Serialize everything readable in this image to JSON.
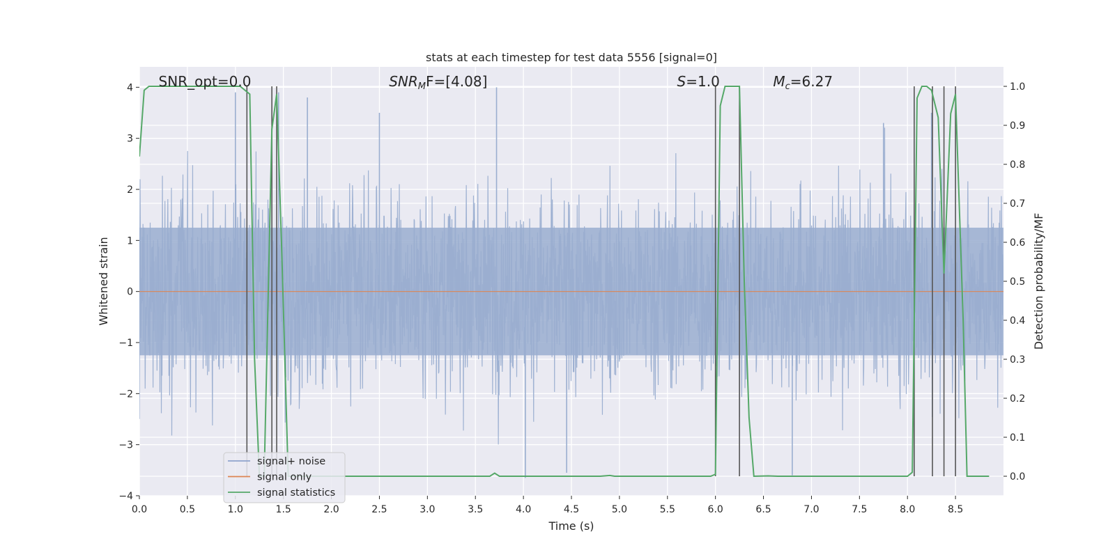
{
  "chart_data": {
    "type": "line",
    "title": "stats at each timestep for test data 5556 [signal=0]",
    "xlabel": "Time (s)",
    "ylabel": "Whitened strain",
    "ylabel_right": "Detection probability/MF",
    "xlim": [
      0.0,
      9.0
    ],
    "ylim": [
      -4.0,
      4.4
    ],
    "ylim_right": [
      -0.05,
      1.05
    ],
    "grid": true,
    "x_ticks": [
      "0.0",
      "0.5",
      "1.0",
      "1.5",
      "2.0",
      "2.5",
      "3.0",
      "3.5",
      "4.0",
      "4.5",
      "5.0",
      "5.5",
      "6.0",
      "6.5",
      "7.0",
      "7.5",
      "8.0",
      "8.5"
    ],
    "y_ticks": [
      "4",
      "3",
      "2",
      "1",
      "0",
      "−1",
      "−2",
      "−3",
      "−4"
    ],
    "y_right_ticks": [
      "1.0",
      "0.9",
      "0.8",
      "0.7",
      "0.6",
      "0.5",
      "0.4",
      "0.3",
      "0.2",
      "0.1",
      "0.0"
    ],
    "annotations": [
      {
        "prefix": "SNR_opt=0.0",
        "sub": "",
        "suffix": "",
        "x": 0.2
      },
      {
        "prefix": "SNR",
        "sub": "M",
        "suffix": "F=[4.08]",
        "x": 2.6
      },
      {
        "prefix": "S",
        "sub": "",
        "suffix": "=1.0",
        "x": 5.6
      },
      {
        "prefix": "M",
        "sub": "c",
        "suffix": "=6.27",
        "x": 6.6
      }
    ],
    "legend": {
      "placement": "lower-left",
      "entries": [
        {
          "label": "signal+ noise",
          "color": "#8fa3cc"
        },
        {
          "label": "signal only",
          "color": "#dd8452"
        },
        {
          "label": "signal statistics",
          "color": "#55a868"
        }
      ]
    },
    "series": [
      {
        "name": "signal+ noise",
        "axis": "left",
        "color": "#9aaed0",
        "x_range": [
          0.0,
          9.0
        ],
        "noise_amplitude_percentiles": {
          "median": 1.7,
          "max_positive": 4.0,
          "max_negative": -3.65
        },
        "notable_peaks": [
          [
            1.0,
            3.9
          ],
          [
            1.45,
            3.9
          ],
          [
            1.75,
            3.8
          ],
          [
            2.5,
            3.5
          ],
          [
            3.72,
            4.0
          ],
          [
            4.02,
            -3.65
          ],
          [
            4.45,
            -3.55
          ],
          [
            6.8,
            -3.6
          ],
          [
            7.75,
            3.3
          ],
          [
            8.25,
            3.5
          ]
        ]
      },
      {
        "name": "signal only",
        "axis": "left",
        "color": "#dd8452",
        "x": [
          0.0,
          9.0
        ],
        "y": [
          0.0,
          0.0
        ]
      },
      {
        "name": "signal statistics",
        "axis": "right",
        "color": "#55a868",
        "x": [
          0.0,
          0.05,
          0.1,
          0.2,
          1.05,
          1.1,
          1.15,
          1.2,
          1.25,
          1.3,
          1.38,
          1.43,
          1.48,
          1.55,
          3.6,
          3.65,
          3.7,
          3.75,
          3.85,
          4.8,
          4.9,
          4.95,
          5.95,
          6.0,
          6.05,
          6.1,
          6.25,
          6.3,
          6.35,
          6.4,
          6.55,
          6.65,
          8.0,
          8.05,
          8.1,
          8.15,
          8.2,
          8.25,
          8.32,
          8.38,
          8.45,
          8.5,
          8.58,
          8.62,
          8.85
        ],
        "y": [
          0.82,
          0.99,
          1.0,
          1.0,
          1.0,
          0.99,
          0.98,
          0.3,
          0.0,
          0.0,
          0.89,
          0.98,
          0.6,
          0.0,
          0.0,
          0.0,
          0.008,
          0.0,
          0.0,
          0.0,
          0.002,
          0.0,
          0.0,
          0.005,
          0.95,
          1.0,
          1.0,
          0.5,
          0.15,
          0.0,
          0.001,
          0.0,
          0.0,
          0.01,
          0.97,
          1.0,
          1.0,
          0.99,
          0.92,
          0.52,
          0.93,
          0.98,
          0.4,
          0.0,
          0.0
        ]
      }
    ],
    "vertical_markers": [
      1.12,
      1.38,
      1.43,
      6.0,
      6.25,
      8.07,
      8.26,
      8.38,
      8.5
    ]
  }
}
